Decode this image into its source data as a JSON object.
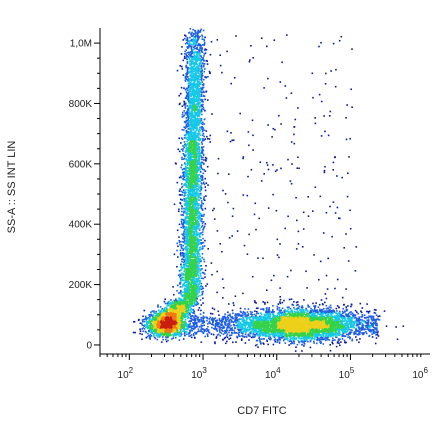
{
  "chart_data": {
    "type": "scatter",
    "subtype": "flow-cytometry-density-dot-plot",
    "xlabel": "CD7 FITC",
    "ylabel": "SS-A :: SS INT LIN",
    "x_scale": "log",
    "y_scale": "linear",
    "xlim": [
      40,
      1200000
    ],
    "ylim": [
      -30000,
      1050000
    ],
    "x_ticks": [
      {
        "value": 100,
        "label": "10",
        "exp": "2"
      },
      {
        "value": 1000,
        "label": "10",
        "exp": "3"
      },
      {
        "value": 10000,
        "label": "10",
        "exp": "4"
      },
      {
        "value": 100000,
        "label": "10",
        "exp": "5"
      },
      {
        "value": 1000000,
        "label": "10",
        "exp": "6"
      }
    ],
    "y_ticks": [
      {
        "value": 0,
        "label": "0"
      },
      {
        "value": 200000,
        "label": "200K"
      },
      {
        "value": 400000,
        "label": "400K"
      },
      {
        "value": 600000,
        "label": "600K"
      },
      {
        "value": 800000,
        "label": "800K"
      },
      {
        "value": 1000000,
        "label": "1,0M"
      }
    ],
    "populations": [
      {
        "center_x": 800,
        "center_y": 650000,
        "note": "CD7-negative granular column, dense 150K-1.0M"
      },
      {
        "center_x": 300,
        "center_y": 70000,
        "note": "CD7-negative low-scatter cluster"
      },
      {
        "center_x": 20000,
        "center_y": 70000,
        "note": "CD7-positive low-scatter population"
      }
    ],
    "density_colors": [
      "#0b1a9c",
      "#1f5ee0",
      "#16c8e6",
      "#35d24a",
      "#ecd01a",
      "#f07a14",
      "#c81e12"
    ],
    "grid": false,
    "legend": "none"
  }
}
